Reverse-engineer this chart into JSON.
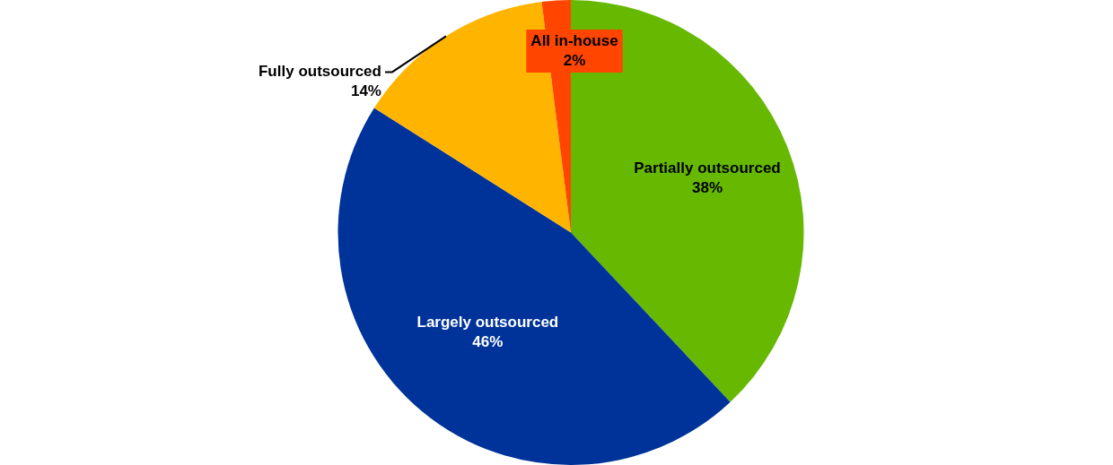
{
  "chart_data": {
    "type": "pie",
    "categories": [
      "Partially outsourced",
      "Largely outsourced",
      "Fully outsourced",
      "All in-house"
    ],
    "values": [
      38,
      46,
      14,
      2
    ],
    "colors": [
      "#66b900",
      "#003399",
      "#ffb400",
      "#ff4500"
    ],
    "value_labels": [
      "38%",
      "46%",
      "14%",
      "2%"
    ],
    "legend": false
  }
}
